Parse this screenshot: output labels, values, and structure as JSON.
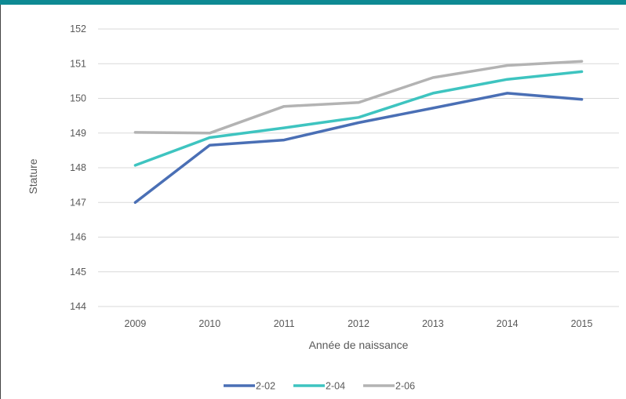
{
  "chart_data": {
    "type": "line",
    "title": "",
    "xlabel": "Année de naissance",
    "ylabel": "Stature",
    "categories": [
      "2009",
      "2010",
      "2011",
      "2012",
      "2013",
      "2014",
      "2015"
    ],
    "ylim": [
      144,
      152
    ],
    "yticks": [
      144,
      145,
      146,
      147,
      148,
      149,
      150,
      151,
      152
    ],
    "grid": true,
    "legend_position": "bottom",
    "series": [
      {
        "name": "2-02",
        "color": "#4A6FB5",
        "values": [
          147.0,
          148.65,
          148.8,
          149.3,
          149.72,
          150.15,
          149.97
        ]
      },
      {
        "name": "2-04",
        "color": "#3EC4C0",
        "values": [
          148.07,
          148.87,
          149.15,
          149.45,
          150.15,
          150.55,
          150.77
        ]
      },
      {
        "name": "2-06",
        "color": "#B3B3B3",
        "values": [
          149.02,
          149.0,
          149.77,
          149.88,
          150.6,
          150.95,
          151.07
        ]
      }
    ]
  }
}
